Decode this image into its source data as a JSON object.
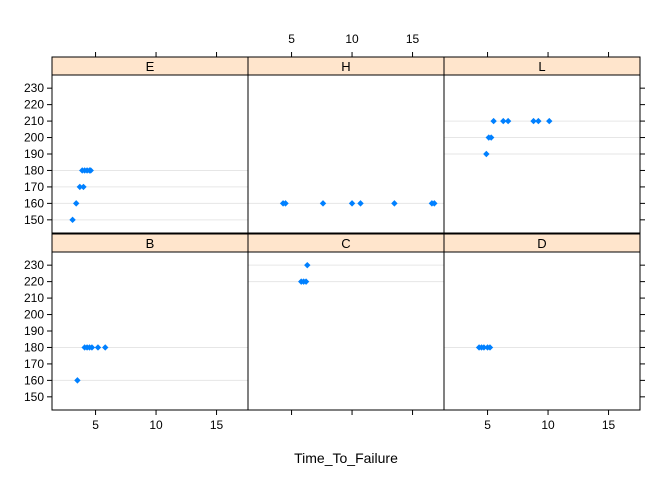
{
  "chart_data": {
    "type": "scatter",
    "title": "",
    "xlabel": "Time_To_Failure",
    "ylabel": "",
    "xlim": [
      1.4,
      17.6
    ],
    "ylim": [
      142,
      238
    ],
    "x_ticks": [
      5,
      10,
      15
    ],
    "y_ticks": [
      150,
      160,
      170,
      180,
      190,
      200,
      210,
      220,
      230
    ],
    "point_color": "#0080ff",
    "strip_color": "#ffe5cc",
    "grid": false,
    "panels": [
      {
        "label": "E",
        "points": [
          {
            "x": 3.1,
            "y": 150
          },
          {
            "x": 3.4,
            "y": 160
          },
          {
            "x": 3.7,
            "y": 170
          },
          {
            "x": 4.0,
            "y": 170
          },
          {
            "x": 3.9,
            "y": 180
          },
          {
            "x": 4.1,
            "y": 180
          },
          {
            "x": 4.3,
            "y": 180
          },
          {
            "x": 4.5,
            "y": 180
          },
          {
            "x": 4.6,
            "y": 180
          }
        ]
      },
      {
        "label": "H",
        "points": [
          {
            "x": 4.3,
            "y": 160
          },
          {
            "x": 4.5,
            "y": 160
          },
          {
            "x": 7.6,
            "y": 160
          },
          {
            "x": 10.0,
            "y": 160
          },
          {
            "x": 10.7,
            "y": 160
          },
          {
            "x": 13.5,
            "y": 160
          },
          {
            "x": 16.6,
            "y": 160
          },
          {
            "x": 16.8,
            "y": 160
          }
        ]
      },
      {
        "label": "L",
        "points": [
          {
            "x": 4.9,
            "y": 190
          },
          {
            "x": 5.1,
            "y": 200
          },
          {
            "x": 5.3,
            "y": 200
          },
          {
            "x": 5.5,
            "y": 210
          },
          {
            "x": 6.3,
            "y": 210
          },
          {
            "x": 6.7,
            "y": 210
          },
          {
            "x": 8.8,
            "y": 210
          },
          {
            "x": 9.2,
            "y": 210
          },
          {
            "x": 10.1,
            "y": 210
          }
        ]
      },
      {
        "label": "B",
        "points": [
          {
            "x": 3.5,
            "y": 160
          },
          {
            "x": 4.1,
            "y": 180
          },
          {
            "x": 4.3,
            "y": 180
          },
          {
            "x": 4.5,
            "y": 180
          },
          {
            "x": 4.7,
            "y": 180
          },
          {
            "x": 5.2,
            "y": 180
          },
          {
            "x": 5.8,
            "y": 180
          }
        ]
      },
      {
        "label": "C",
        "points": [
          {
            "x": 6.3,
            "y": 230
          },
          {
            "x": 5.8,
            "y": 220
          },
          {
            "x": 6.0,
            "y": 220
          },
          {
            "x": 6.2,
            "y": 220
          }
        ]
      },
      {
        "label": "D",
        "points": [
          {
            "x": 4.3,
            "y": 180
          },
          {
            "x": 4.5,
            "y": 180
          },
          {
            "x": 4.7,
            "y": 180
          },
          {
            "x": 5.0,
            "y": 180
          },
          {
            "x": 5.2,
            "y": 180
          }
        ]
      }
    ]
  }
}
